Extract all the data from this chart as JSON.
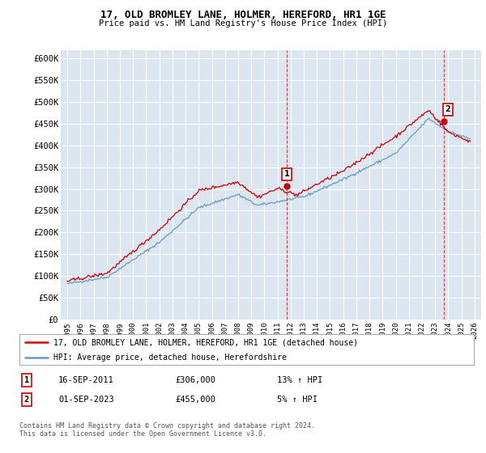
{
  "title": "17, OLD BROMLEY LANE, HOLMER, HEREFORD, HR1 1GE",
  "subtitle": "Price paid vs. HM Land Registry's House Price Index (HPI)",
  "ylabel_ticks": [
    "£0",
    "£50K",
    "£100K",
    "£150K",
    "£200K",
    "£250K",
    "£300K",
    "£350K",
    "£400K",
    "£450K",
    "£500K",
    "£550K",
    "£600K"
  ],
  "ylim": [
    0,
    620000
  ],
  "ytick_vals": [
    0,
    50000,
    100000,
    150000,
    200000,
    250000,
    300000,
    350000,
    400000,
    450000,
    500000,
    550000,
    600000
  ],
  "background_color": "#dce6f1",
  "red_line_color": "#cc0000",
  "blue_line_color": "#6699cc",
  "vline_color": "#cc0000",
  "sale1_year": 2011.708,
  "sale1_value": 306000,
  "sale2_year": 2023.667,
  "sale2_value": 455000,
  "legend_label1": "17, OLD BROMLEY LANE, HOLMER, HEREFORD, HR1 1GE (detached house)",
  "legend_label2": "HPI: Average price, detached house, Herefordshire",
  "table_row1": [
    "1",
    "16-SEP-2011",
    "£306,000",
    "13% ↑ HPI"
  ],
  "table_row2": [
    "2",
    "01-SEP-2023",
    "£455,000",
    "5% ↑ HPI"
  ],
  "footer": "Contains HM Land Registry data © Crown copyright and database right 2024.\nThis data is licensed under the Open Government Licence v3.0.",
  "xlim_left": 1994.5,
  "xlim_right": 2026.5
}
